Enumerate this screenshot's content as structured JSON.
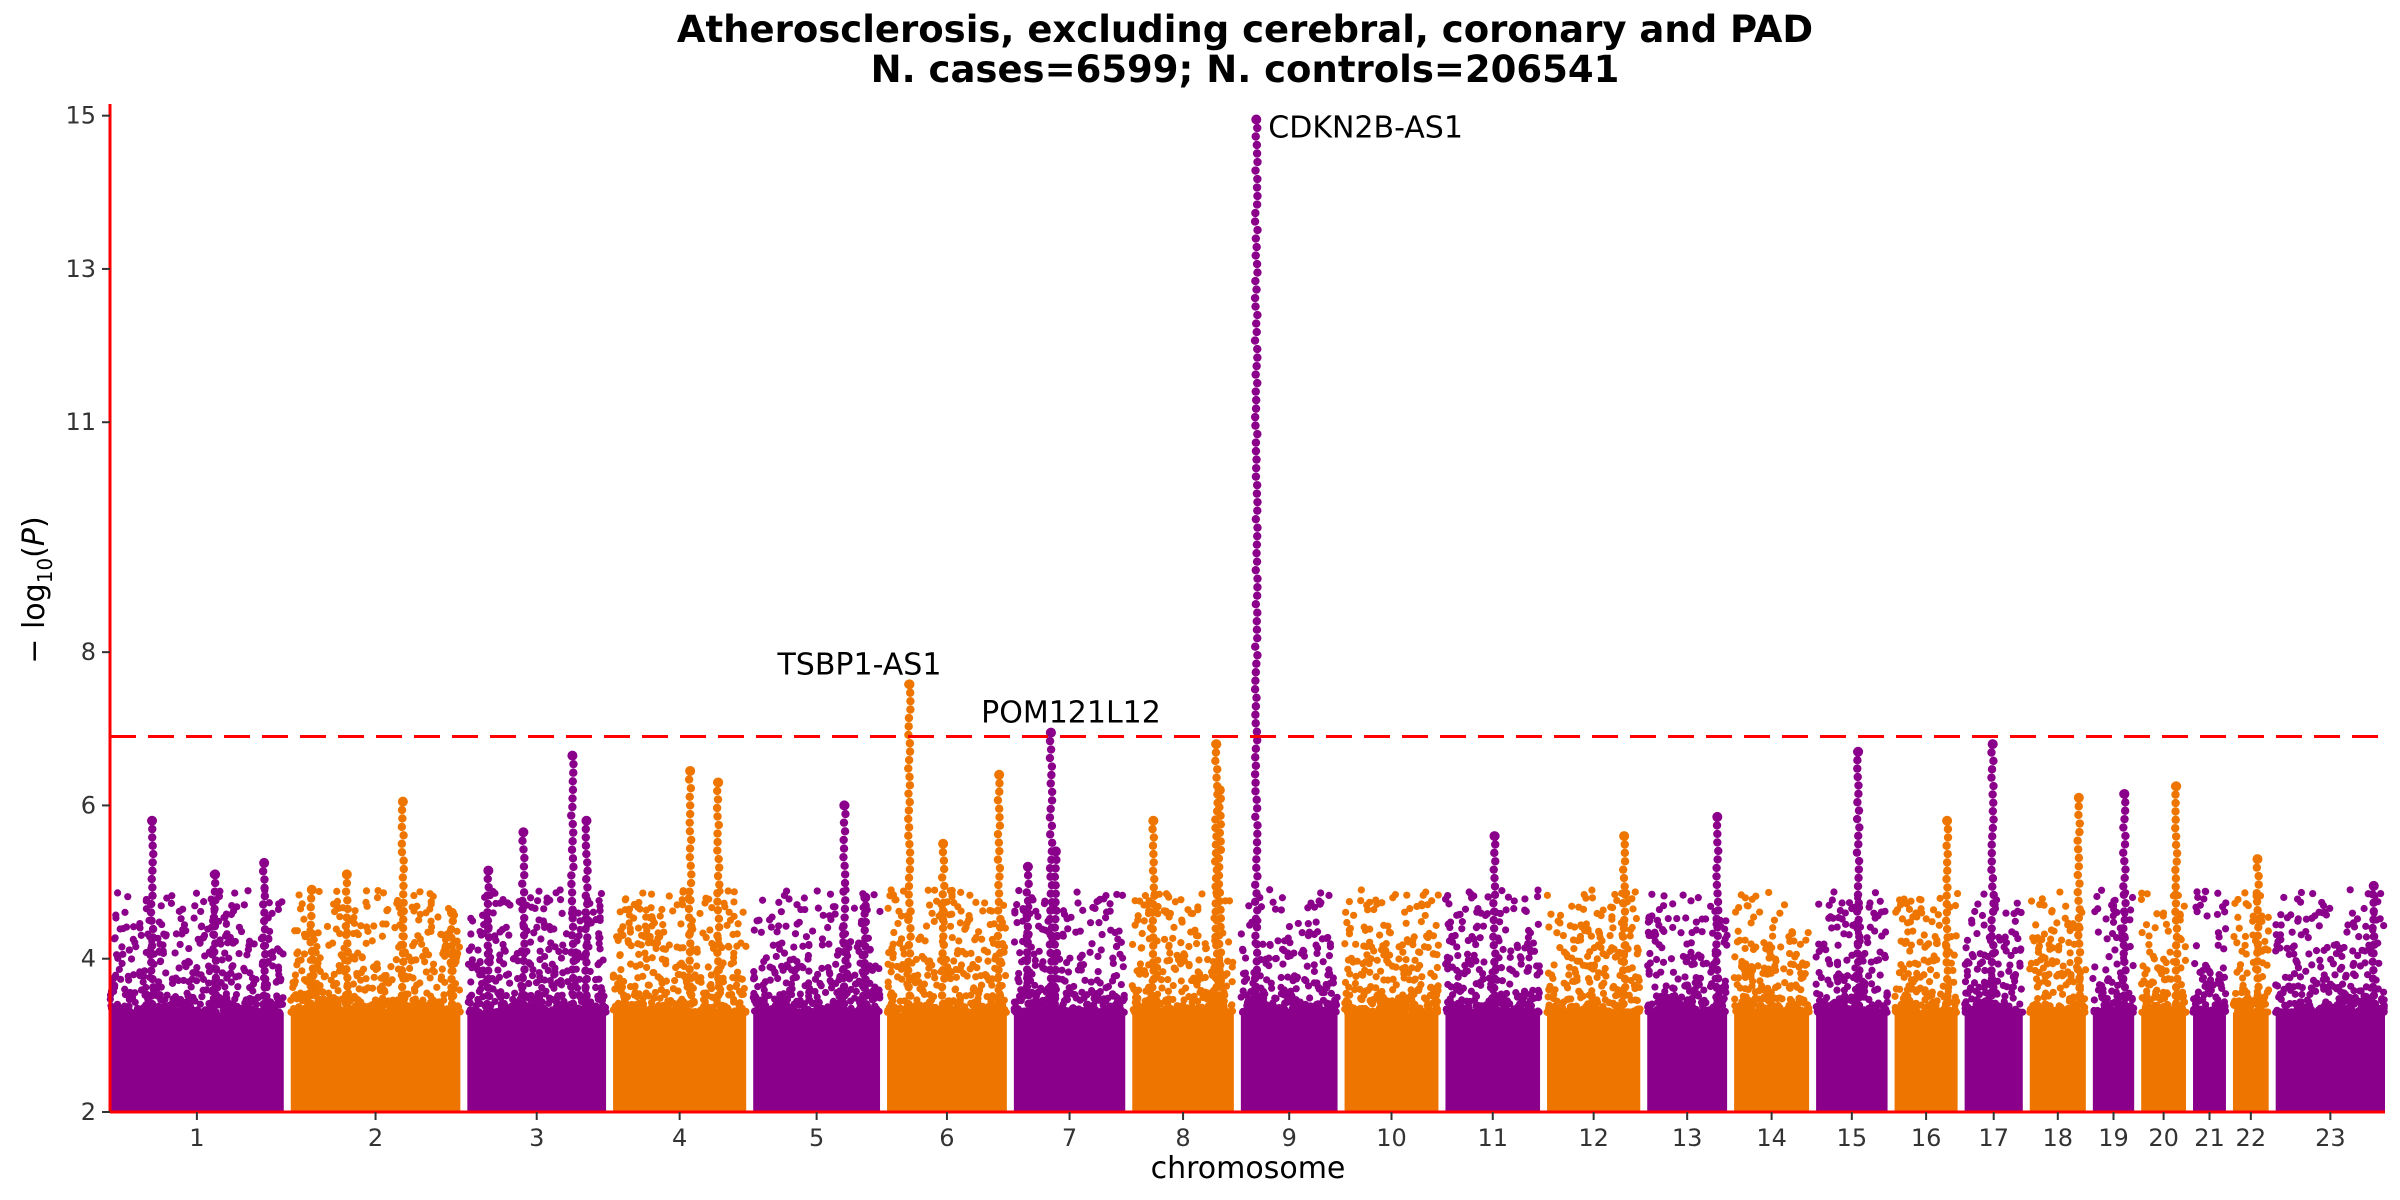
{
  "chart_data": {
    "type": "scatter",
    "title": [
      "Atherosclerosis, excluding cerebral, coronary and PAD",
      "N. cases=6599; N. controls=206541"
    ],
    "xlabel": "chromosome",
    "ylabel": "-log10(P)",
    "ylim": [
      2,
      15.1
    ],
    "y_ticks": [
      2,
      4,
      6,
      8,
      11,
      13,
      15
    ],
    "threshold": 6.9,
    "grid": false,
    "colors": {
      "odd": "#8B008B",
      "even": "#EE7600",
      "axis": "#FF0000",
      "threshold": "#FF0000"
    },
    "chromosomes": [
      {
        "label": "1",
        "size": 248
      },
      {
        "label": "2",
        "size": 242
      },
      {
        "label": "3",
        "size": 198
      },
      {
        "label": "4",
        "size": 190
      },
      {
        "label": "5",
        "size": 181
      },
      {
        "label": "6",
        "size": 171
      },
      {
        "label": "7",
        "size": 159
      },
      {
        "label": "8",
        "size": 145
      },
      {
        "label": "9",
        "size": 138
      },
      {
        "label": "10",
        "size": 134
      },
      {
        "label": "11",
        "size": 135
      },
      {
        "label": "12",
        "size": 133
      },
      {
        "label": "13",
        "size": 114
      },
      {
        "label": "14",
        "size": 107
      },
      {
        "label": "15",
        "size": 102
      },
      {
        "label": "16",
        "size": 90
      },
      {
        "label": "17",
        "size": 83
      },
      {
        "label": "18",
        "size": 80
      },
      {
        "label": "19",
        "size": 59
      },
      {
        "label": "20",
        "size": 64
      },
      {
        "label": "21",
        "size": 47
      },
      {
        "label": "22",
        "size": 51
      },
      {
        "label": "23",
        "size": 156
      }
    ],
    "annotations": [
      {
        "label": "CDKN2B-AS1",
        "chr": "9",
        "pos": 22,
        "y": 14.95
      },
      {
        "label": "TSBP1-AS1",
        "chr": "6",
        "pos": 32,
        "y": 7.58
      },
      {
        "label": "POM121L12",
        "chr": "7",
        "pos": 53,
        "y": 6.95
      }
    ],
    "peaks": [
      {
        "chr": "1",
        "pos": 60,
        "y": 5.8
      },
      {
        "chr": "1",
        "pos": 150,
        "y": 5.1
      },
      {
        "chr": "1",
        "pos": 220,
        "y": 5.25
      },
      {
        "chr": "2",
        "pos": 30,
        "y": 4.9
      },
      {
        "chr": "2",
        "pos": 80,
        "y": 5.1
      },
      {
        "chr": "2",
        "pos": 160,
        "y": 6.05
      },
      {
        "chr": "2",
        "pos": 230,
        "y": 4.6
      },
      {
        "chr": "3",
        "pos": 30,
        "y": 5.15
      },
      {
        "chr": "3",
        "pos": 80,
        "y": 5.65
      },
      {
        "chr": "3",
        "pos": 150,
        "y": 6.65
      },
      {
        "chr": "3",
        "pos": 170,
        "y": 5.8
      },
      {
        "chr": "4",
        "pos": 110,
        "y": 6.45
      },
      {
        "chr": "4",
        "pos": 150,
        "y": 6.3
      },
      {
        "chr": "5",
        "pos": 130,
        "y": 6.0
      },
      {
        "chr": "5",
        "pos": 160,
        "y": 4.8
      },
      {
        "chr": "6",
        "pos": 32,
        "y": 7.58
      },
      {
        "chr": "6",
        "pos": 80,
        "y": 5.5
      },
      {
        "chr": "6",
        "pos": 160,
        "y": 6.4
      },
      {
        "chr": "7",
        "pos": 20,
        "y": 5.2
      },
      {
        "chr": "7",
        "pos": 53,
        "y": 6.95
      },
      {
        "chr": "7",
        "pos": 60,
        "y": 5.4
      },
      {
        "chr": "8",
        "pos": 30,
        "y": 5.8
      },
      {
        "chr": "8",
        "pos": 120,
        "y": 6.8
      },
      {
        "chr": "8",
        "pos": 125,
        "y": 6.2
      },
      {
        "chr": "9",
        "pos": 22,
        "y": 14.95
      },
      {
        "chr": "11",
        "pos": 70,
        "y": 5.6
      },
      {
        "chr": "12",
        "pos": 110,
        "y": 5.6
      },
      {
        "chr": "13",
        "pos": 100,
        "y": 5.85
      },
      {
        "chr": "15",
        "pos": 60,
        "y": 6.7
      },
      {
        "chr": "16",
        "pos": 75,
        "y": 5.8
      },
      {
        "chr": "17",
        "pos": 40,
        "y": 6.8
      },
      {
        "chr": "18",
        "pos": 70,
        "y": 6.1
      },
      {
        "chr": "19",
        "pos": 45,
        "y": 6.15
      },
      {
        "chr": "20",
        "pos": 50,
        "y": 6.25
      },
      {
        "chr": "22",
        "pos": 35,
        "y": 5.3
      },
      {
        "chr": "23",
        "pos": 140,
        "y": 4.95
      }
    ]
  }
}
